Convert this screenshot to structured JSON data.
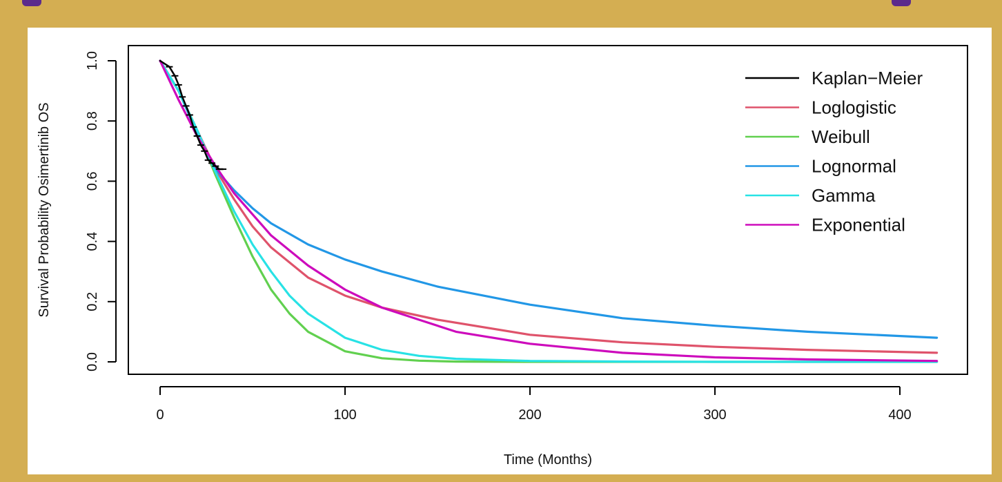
{
  "chart_data": {
    "type": "line",
    "title": "",
    "xlabel": "Time (Months)",
    "ylabel": "Survival Probability Osimertinib OS",
    "xlim": [
      0,
      420
    ],
    "ylim": [
      0,
      1.0
    ],
    "x_ticks": [
      "0",
      "100",
      "200",
      "300",
      "400"
    ],
    "y_ticks": [
      "0.0",
      "0.2",
      "0.4",
      "0.6",
      "0.8",
      "1.0"
    ],
    "legend_position": "top-right",
    "series": [
      {
        "name": "Kaplan−Meier",
        "color": "#000000",
        "x": [
          0,
          5,
          8,
          10,
          12,
          14,
          16,
          18,
          20,
          22,
          24,
          26,
          28,
          30,
          32,
          34
        ],
        "y": [
          1.0,
          0.98,
          0.95,
          0.92,
          0.88,
          0.85,
          0.82,
          0.78,
          0.75,
          0.72,
          0.7,
          0.67,
          0.66,
          0.65,
          0.64,
          0.64
        ]
      },
      {
        "name": "Loglogistic",
        "color": "#df536b",
        "x": [
          0,
          10,
          20,
          30,
          40,
          50,
          60,
          80,
          100,
          120,
          150,
          200,
          250,
          300,
          350,
          420
        ],
        "y": [
          1.0,
          0.9,
          0.77,
          0.64,
          0.54,
          0.45,
          0.38,
          0.28,
          0.22,
          0.18,
          0.14,
          0.09,
          0.065,
          0.05,
          0.04,
          0.03
        ]
      },
      {
        "name": "Weibull",
        "color": "#61d04f",
        "x": [
          0,
          10,
          20,
          30,
          40,
          50,
          60,
          70,
          80,
          100,
          120,
          140,
          160,
          200,
          250,
          300,
          350,
          420
        ],
        "y": [
          1.0,
          0.9,
          0.77,
          0.62,
          0.48,
          0.35,
          0.24,
          0.16,
          0.1,
          0.035,
          0.012,
          0.004,
          0.001,
          0.0,
          0.0,
          0.0,
          0.0,
          0.0
        ]
      },
      {
        "name": "Lognormal",
        "color": "#2297e6",
        "x": [
          0,
          10,
          20,
          30,
          40,
          50,
          60,
          80,
          100,
          120,
          150,
          200,
          250,
          300,
          350,
          420
        ],
        "y": [
          1.0,
          0.9,
          0.76,
          0.64,
          0.57,
          0.51,
          0.46,
          0.39,
          0.34,
          0.3,
          0.25,
          0.19,
          0.145,
          0.12,
          0.1,
          0.08
        ]
      },
      {
        "name": "Gamma",
        "color": "#28e2e5",
        "x": [
          0,
          10,
          20,
          30,
          40,
          50,
          60,
          70,
          80,
          100,
          120,
          140,
          160,
          200,
          250,
          300,
          350,
          420
        ],
        "y": [
          1.0,
          0.9,
          0.77,
          0.63,
          0.5,
          0.39,
          0.3,
          0.22,
          0.16,
          0.08,
          0.04,
          0.02,
          0.01,
          0.003,
          0.001,
          0.0,
          0.0,
          0.0
        ]
      },
      {
        "name": "Exponential",
        "color": "#cd0bbc",
        "x": [
          0,
          10,
          20,
          30,
          40,
          50,
          60,
          80,
          100,
          120,
          140,
          160,
          200,
          250,
          300,
          350,
          420
        ],
        "y": [
          1.0,
          0.87,
          0.75,
          0.65,
          0.56,
          0.49,
          0.42,
          0.32,
          0.24,
          0.18,
          0.14,
          0.1,
          0.06,
          0.03,
          0.015,
          0.008,
          0.003
        ]
      }
    ]
  }
}
